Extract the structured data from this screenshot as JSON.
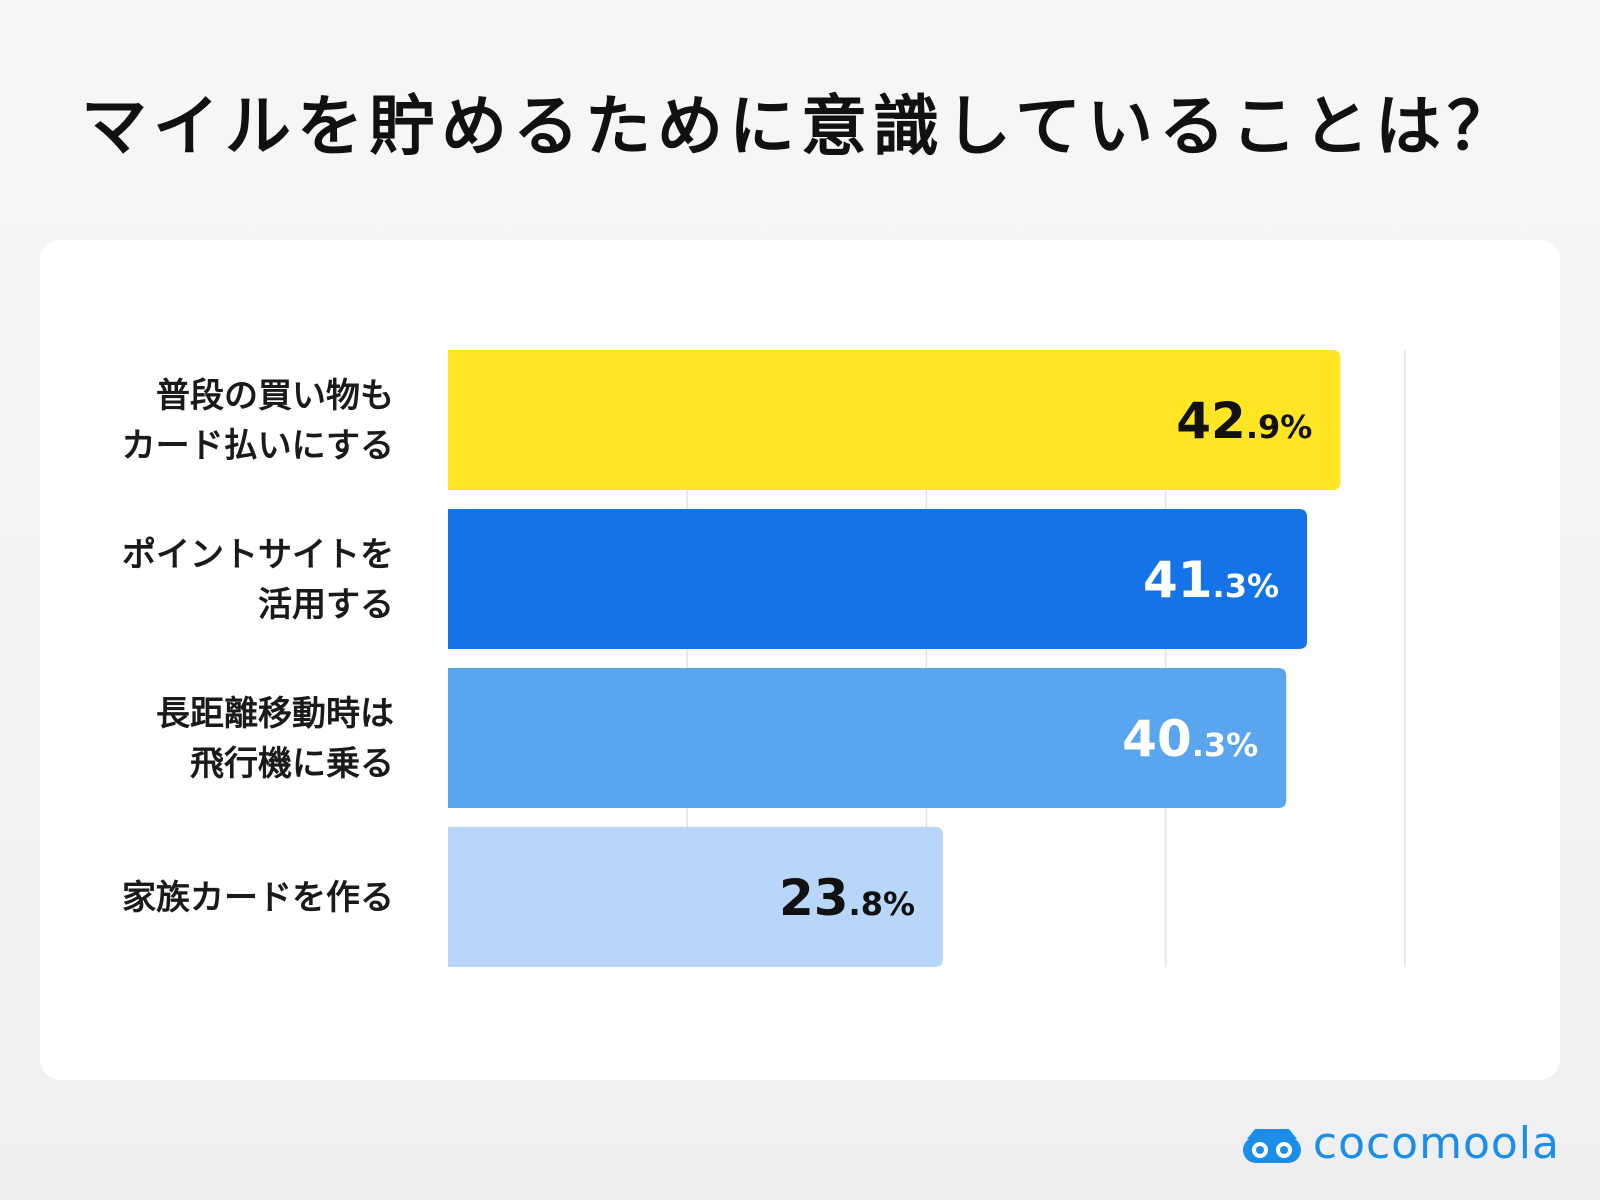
{
  "title": "マイルを貯めるために意識していることは？",
  "chart_data": {
    "type": "bar",
    "orientation": "horizontal",
    "categories": [
      [
        "普段の買い物も",
        "カード払いにする"
      ],
      [
        "ポイントサイトを",
        "活用する"
      ],
      [
        "長距離移動時は",
        "飛行機に乗る"
      ],
      [
        "家族カードを作る"
      ]
    ],
    "values": [
      42.9,
      41.3,
      40.3,
      23.8
    ],
    "value_labels": [
      {
        "int": "42",
        "dec": ".9%"
      },
      {
        "int": "41",
        "dec": ".3%"
      },
      {
        "int": "40",
        "dec": ".3%"
      },
      {
        "int": "23",
        "dec": ".8%"
      }
    ],
    "bar_colors": [
      "#ffe524",
      "#1473e6",
      "#5aa6ee",
      "#b7d6fa"
    ],
    "label_colors": [
      "#111111",
      "#ffffff",
      "#ffffff",
      "#111111"
    ],
    "grid": true,
    "grid_color": "#e3e3e6"
  },
  "logo": {
    "text": "cocomoola",
    "icon": "car-icon",
    "color": "#1a8ee8"
  }
}
